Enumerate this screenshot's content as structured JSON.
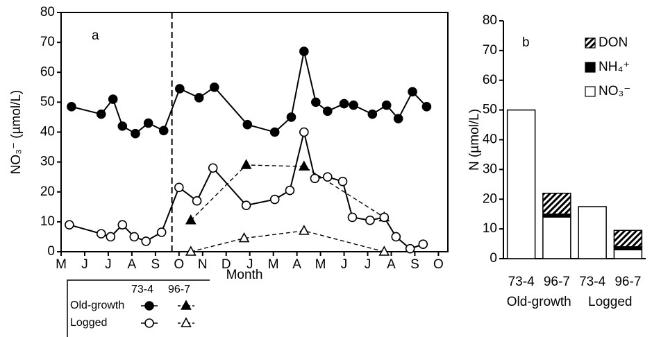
{
  "chart_data": [
    {
      "type": "line",
      "panel_label": "a",
      "xlabel": "Month",
      "ylabel": "NO₃⁻ (µmol/L)",
      "xlim": [
        0,
        16.4
      ],
      "xticks": [
        {
          "value": 0,
          "label": "M"
        },
        {
          "value": 1,
          "label": "J"
        },
        {
          "value": 2,
          "label": "J"
        },
        {
          "value": 3,
          "label": "A"
        },
        {
          "value": 4,
          "label": "S"
        },
        {
          "value": 5,
          "label": "O"
        },
        {
          "value": 6,
          "label": "N"
        },
        {
          "value": 7,
          "label": "D"
        },
        {
          "value": 8,
          "label": "J"
        },
        {
          "value": 9,
          "label": "M"
        },
        {
          "value": 10,
          "label": "A"
        },
        {
          "value": 11,
          "label": "M"
        },
        {
          "value": 12,
          "label": "J"
        },
        {
          "value": 13,
          "label": "J"
        },
        {
          "value": 14,
          "label": "A"
        },
        {
          "value": 15,
          "label": "S"
        },
        {
          "value": 16,
          "label": "O"
        }
      ],
      "ylim": [
        0,
        80
      ],
      "yticks": [
        0,
        10,
        20,
        30,
        40,
        50,
        60,
        70,
        80
      ],
      "vline": 4.7,
      "legend": {
        "columns": [
          "73-4",
          "96-7"
        ],
        "rows": [
          "Old-growth",
          "Logged"
        ]
      },
      "series": [
        {
          "marker": "circle",
          "filled": true,
          "dashed": false,
          "x": [
            0.44,
            1.7,
            2.2,
            2.6,
            3.15,
            3.7,
            4.35,
            5.03,
            5.85,
            6.5,
            7.9,
            9.06,
            9.76,
            10.3,
            10.8,
            11.3,
            12.0,
            12.4,
            13.2,
            13.8,
            14.3,
            14.9,
            15.5
          ],
          "values": [
            48.5,
            46,
            51,
            42,
            39.5,
            43,
            40.5,
            54.5,
            51.5,
            55,
            42.5,
            40,
            45,
            67,
            50,
            47,
            49.5,
            49,
            46,
            49,
            44.5,
            53.5,
            48.5
          ]
        },
        {
          "marker": "triangle",
          "filled": true,
          "dashed": true,
          "x": [
            5.5,
            7.85,
            10.3,
            13.7
          ],
          "values": [
            10.5,
            29,
            28.5,
            11.5
          ]
        },
        {
          "marker": "circle",
          "filled": false,
          "dashed": false,
          "x": [
            0.35,
            1.7,
            2.1,
            2.6,
            3.1,
            3.6,
            4.26,
            5.0,
            5.76,
            6.44,
            7.85,
            9.06,
            9.7,
            10.3,
            10.76,
            11.3,
            11.94,
            12.35,
            13.1,
            13.7,
            14.2,
            14.8,
            15.35
          ],
          "values": [
            9,
            6,
            5,
            9,
            5,
            3.5,
            6.5,
            21.5,
            17,
            28,
            15.5,
            17.5,
            20.5,
            40,
            24.5,
            25,
            23.5,
            11.5,
            10.5,
            11.5,
            5,
            1,
            2.5
          ]
        },
        {
          "marker": "triangle",
          "filled": false,
          "dashed": true,
          "x": [
            5.5,
            7.76,
            10.3,
            13.7
          ],
          "values": [
            0,
            4.5,
            7,
            0
          ]
        }
      ]
    },
    {
      "type": "stacked_bar",
      "panel_label": "b",
      "ylabel": "N (µmol/L)",
      "categories": [
        "73-4",
        "96-7",
        "73-4",
        "96-7"
      ],
      "groups": [
        "Old-growth",
        "Logged"
      ],
      "ylim": [
        0,
        80
      ],
      "yticks": [
        0,
        10,
        20,
        30,
        40,
        50,
        60,
        70,
        80
      ],
      "legend": "upper right",
      "series": [
        {
          "name": "NO₃⁻",
          "color": "#ffffff",
          "values": [
            50,
            14,
            17.5,
            3
          ]
        },
        {
          "name": "NH₄⁺",
          "color": "#000000",
          "values": [
            0,
            1,
            0,
            1
          ]
        },
        {
          "name": "DON",
          "color": "hatch",
          "values": [
            0,
            7,
            0,
            5.5
          ]
        }
      ]
    }
  ]
}
